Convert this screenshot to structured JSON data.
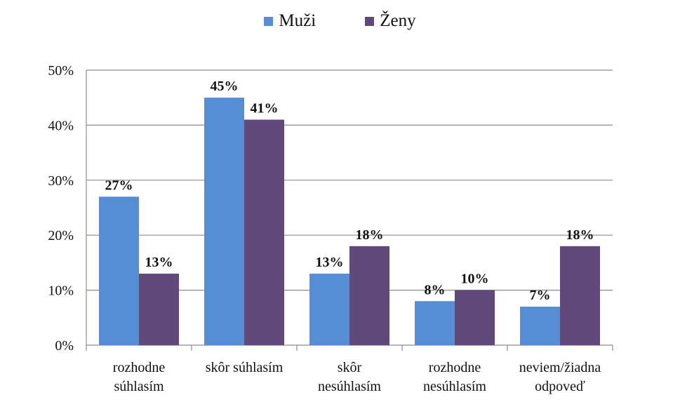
{
  "chart_data": {
    "type": "bar",
    "categories": [
      [
        "rozhodne",
        "súhlasím"
      ],
      [
        "skôr súhlasím"
      ],
      [
        "skôr",
        "nesúhlasím"
      ],
      [
        "rozhodne",
        "nesúhlasím"
      ],
      [
        "neviem/žiadna",
        "odpoveď"
      ]
    ],
    "series": [
      {
        "name": "Muži",
        "color": "#558ed5",
        "values": [
          27,
          45,
          13,
          8,
          7
        ]
      },
      {
        "name": "Ženy",
        "color": "#604a7b",
        "values": [
          13,
          41,
          18,
          10,
          18
        ]
      }
    ],
    "data_labels": [
      [
        "27%",
        "45%",
        "13%",
        "8%",
        "7%"
      ],
      [
        "13%",
        "41%",
        "18%",
        "10%",
        "18%"
      ]
    ],
    "yticks": [
      "0%",
      "10%",
      "20%",
      "30%",
      "40%",
      "50%"
    ],
    "ylim": [
      0,
      50
    ],
    "grid": true,
    "legend": "top-center"
  }
}
